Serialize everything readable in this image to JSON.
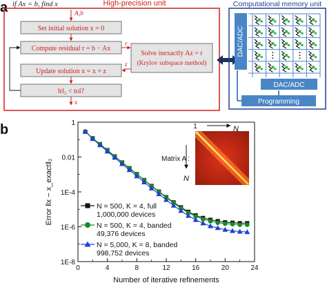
{
  "panel_a": {
    "letter": "a",
    "problem": "if Ax = b, find x",
    "hp_title": "High-precision unit",
    "input_label": "A,b",
    "steps": {
      "init": "Set initial solution x = 0",
      "residual": "Compute residual r = b − Ax",
      "update": "Update solution x = x + z",
      "check": "‖r‖₂ < tol?",
      "solve_line1": "Solve inexactly Az = r",
      "solve_line2": "(Krylov subspace method)"
    },
    "arrow_labels": {
      "r": "r",
      "z": "z",
      "output": "x"
    },
    "cm_title": "Computational memory unit",
    "dac_adc_vertical": "DAC/ADC",
    "dac_adc_horizontal": "DAC/ADC",
    "programming": "Programming",
    "colors": {
      "hp_border": "#cc1f1f",
      "hp_text": "#cc1f1f",
      "cm_border": "#1f3f8f",
      "cm_block": "#4a86c5",
      "device_green": "#39b54a"
    }
  },
  "panel_b": {
    "letter": "b",
    "inset": {
      "label": "Matrix A :",
      "top_left": "1",
      "top_right": "N",
      "left_bottom": "N"
    },
    "chart_data": {
      "type": "line",
      "xlabel": "Number of iterative refinements",
      "ylabel": "Error ‖x − x_exact‖₂",
      "xlim": [
        0,
        24
      ],
      "ylim_log10": [
        -8,
        0
      ],
      "yscale": "log",
      "xticks": [
        "0",
        "4",
        "8",
        "12",
        "16",
        "20",
        "24"
      ],
      "yticks": [
        "1",
        "0.01",
        "1E-4",
        "1E-6",
        "1E-8"
      ],
      "series": [
        {
          "name_line1": "N = 500, K = 4, full",
          "name_line2": "1,000,000 devices",
          "marker": "square",
          "color": "#111111",
          "x": [
            1,
            2,
            3,
            4,
            5,
            6,
            7,
            8,
            9,
            10,
            11,
            12,
            13,
            14,
            15,
            16,
            17,
            18,
            19,
            20,
            21,
            22,
            23
          ],
          "y": [
            0.28,
            0.12,
            0.055,
            0.025,
            0.011,
            0.0049,
            0.0023,
            0.00105,
            0.00048,
            0.00022,
            0.000105,
            5e-05,
            2.5e-05,
            1.3e-05,
            7.2e-06,
            4.5e-06,
            3.2e-06,
            2.5e-06,
            2.1e-06,
            1.8e-06,
            1.7e-06,
            1.6e-06,
            1.6e-06
          ]
        },
        {
          "name_line1": "N = 500, K = 4, banded",
          "name_line2": "49,376 devices",
          "marker": "circle",
          "color": "#1a8a2a",
          "x": [
            1,
            2,
            3,
            4,
            5,
            6,
            7,
            8,
            9,
            10,
            11,
            12,
            13,
            14,
            15,
            16,
            17,
            18,
            19,
            20,
            21,
            22,
            23
          ],
          "y": [
            0.28,
            0.12,
            0.054,
            0.024,
            0.0108,
            0.0048,
            0.0022,
            0.001,
            0.00047,
            0.00021,
            0.0001,
            4.7e-05,
            2.3e-05,
            1.15e-05,
            6.3e-06,
            3.9e-06,
            2.7e-06,
            2.1e-06,
            1.7e-06,
            1.5e-06,
            1.4e-06,
            1.3e-06,
            1.3e-06
          ]
        },
        {
          "name_line1": "N = 5,000, K = 8, banded",
          "name_line2": "998,752 devices",
          "marker": "triangle",
          "color": "#1f3fd0",
          "x": [
            1,
            2,
            3,
            4,
            5,
            6,
            7,
            8,
            9,
            10,
            11,
            12,
            13,
            14,
            15,
            16,
            17,
            18,
            19,
            20,
            21,
            22,
            23
          ],
          "y": [
            0.3,
            0.11,
            0.048,
            0.021,
            0.0092,
            0.004,
            0.0018,
            0.0008,
            0.00036,
            0.00016,
            7.5e-05,
            3.5e-05,
            1.65e-05,
            8.2e-06,
            4.3e-06,
            2.5e-06,
            1.6e-06,
            1.1e-06,
            8.5e-07,
            6.8e-07,
            5.8e-07,
            5.3e-07,
            5e-07
          ]
        }
      ]
    }
  }
}
